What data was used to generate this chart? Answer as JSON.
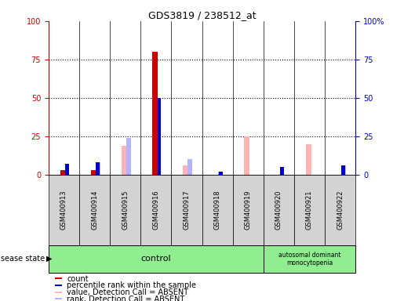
{
  "title": "GDS3819 / 238512_at",
  "samples": [
    "GSM400913",
    "GSM400914",
    "GSM400915",
    "GSM400916",
    "GSM400917",
    "GSM400918",
    "GSM400919",
    "GSM400920",
    "GSM400921",
    "GSM400922"
  ],
  "count_values": [
    3,
    3,
    0,
    80,
    0,
    0,
    0,
    0,
    0,
    0
  ],
  "rank_values": [
    7,
    8,
    0,
    50,
    0,
    2,
    0,
    5,
    0,
    6
  ],
  "absent_value_bars": [
    0,
    0,
    19,
    0,
    6,
    0,
    25,
    0,
    20,
    0
  ],
  "absent_rank_bars": [
    7,
    8,
    24,
    0,
    10,
    2,
    0,
    5,
    0,
    6
  ],
  "ylim": [
    0,
    100
  ],
  "yticks": [
    0,
    25,
    50,
    75,
    100
  ],
  "ytick_labels_left": [
    "0",
    "25",
    "50",
    "75",
    "100"
  ],
  "ytick_labels_right": [
    "0",
    "25",
    "50",
    "75",
    "100%"
  ],
  "color_count": "#cc0000",
  "color_rank": "#0000cc",
  "color_absent_value": "#ffb3b3",
  "color_absent_rank": "#b3b3ff",
  "group_control_indices": [
    0,
    1,
    2,
    3,
    4,
    5,
    6
  ],
  "group_disease_indices": [
    7,
    8,
    9
  ],
  "group_control_label": "control",
  "group_disease_label": "autosomal dominant\nmonocytopenia",
  "disease_state_label": "disease state",
  "legend_items": [
    {
      "label": "count",
      "color": "#cc0000"
    },
    {
      "label": "percentile rank within the sample",
      "color": "#0000cc"
    },
    {
      "label": "value, Detection Call = ABSENT",
      "color": "#ffb3b3"
    },
    {
      "label": "rank, Detection Call = ABSENT",
      "color": "#b3b3ff"
    }
  ],
  "bar_width": 0.18,
  "background_color": "#ffffff",
  "axis_color_left": "#cc0000",
  "axis_color_right": "#0000cc",
  "group_box_color": "#90ee90",
  "sample_box_color": "#d3d3d3"
}
